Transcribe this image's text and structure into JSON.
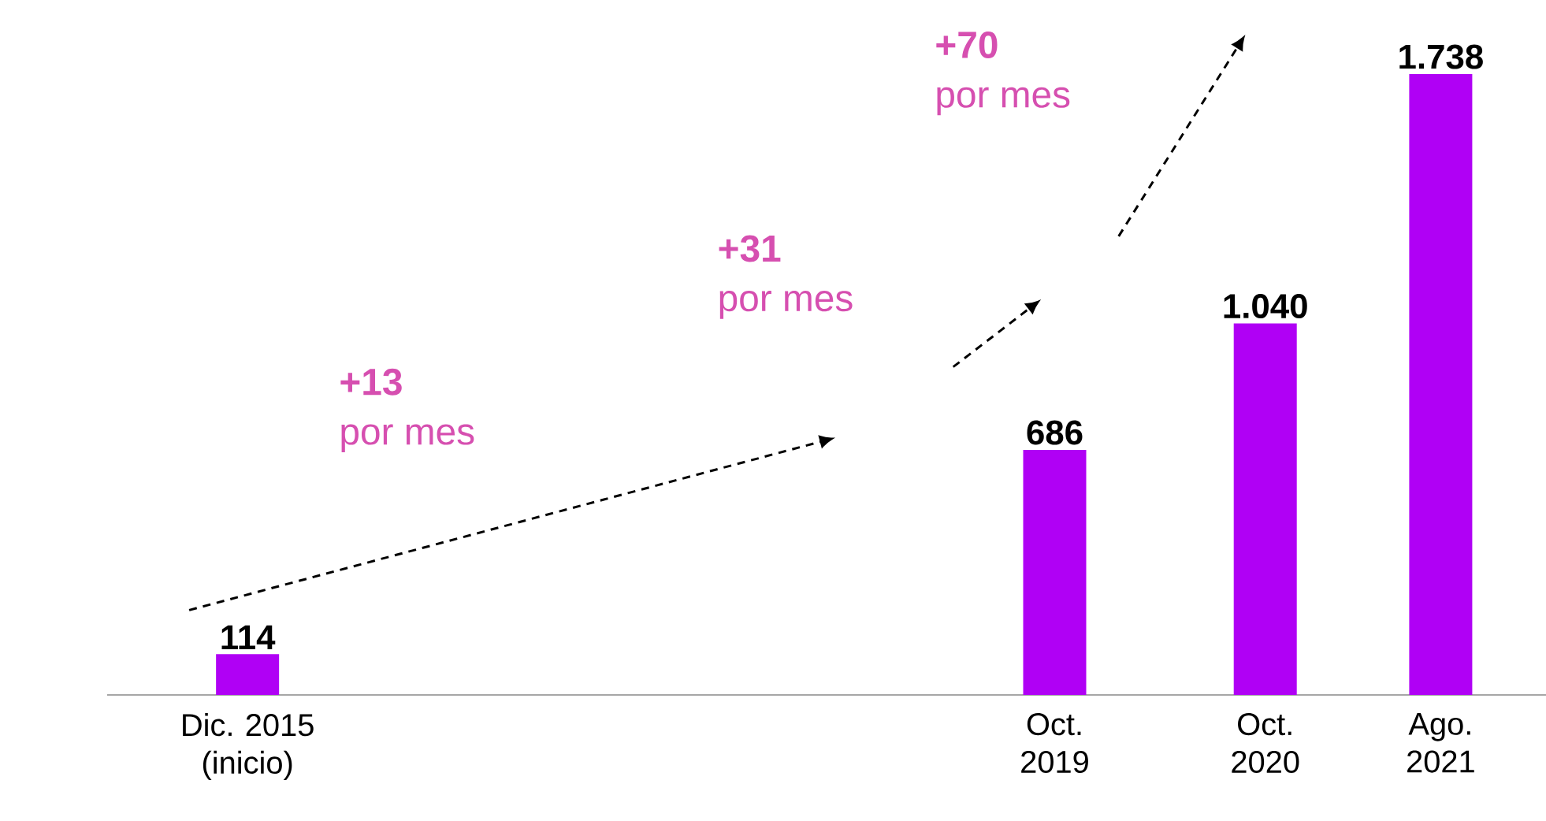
{
  "chart_data": {
    "type": "bar",
    "x": [
      "2015-12",
      "2019-10",
      "2020-10",
      "2021-08"
    ],
    "xlim": [
      "2015-04",
      "2022-02"
    ],
    "xticks": [
      {
        "value": "2015-12",
        "label": "Dic. 2015 (inicio)"
      },
      {
        "value": "2019-10",
        "label": "Oct. 2019"
      },
      {
        "value": "2020-10",
        "label": "Oct. 2020"
      },
      {
        "value": "2021-08",
        "label": "Ago. 2021"
      }
    ],
    "values": [
      114,
      686,
      1040,
      1738
    ],
    "value_labels": [
      "114",
      "686",
      "1.040",
      "1.738"
    ],
    "color": "#b000f5",
    "annotations": [
      "+13",
      "por mes",
      "+31",
      "por mes",
      "+70",
      "por mes"
    ],
    "grid": false
  }
}
